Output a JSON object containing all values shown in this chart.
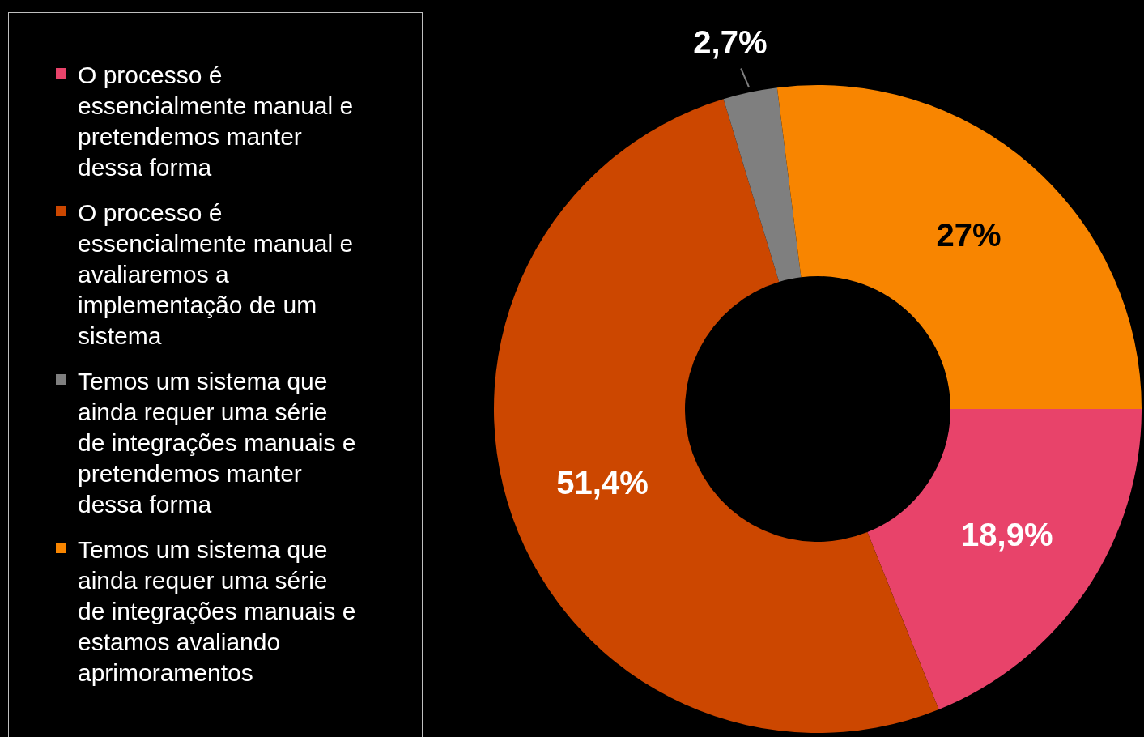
{
  "chart_data": {
    "type": "donut",
    "categories": [
      "O processo é essencialmente manual e pretendemos manter dessa forma",
      "O processo é essencialmente manual e avaliaremos a implementação de um sistema",
      "Temos um sistema que ainda requer uma série de integrações manuais e pretendemos manter dessa forma",
      "Temos um sistema que ainda requer uma série de integrações manuais e estamos avaliando aprimoramentos"
    ],
    "values": [
      18.9,
      51.4,
      2.7,
      27
    ],
    "colors": [
      "#e8436a",
      "#cc4700",
      "#7f7f7f",
      "#f88500"
    ],
    "value_labels": [
      "18,9%",
      "51,4%",
      "2,7%",
      "27%"
    ],
    "legend": "left"
  }
}
